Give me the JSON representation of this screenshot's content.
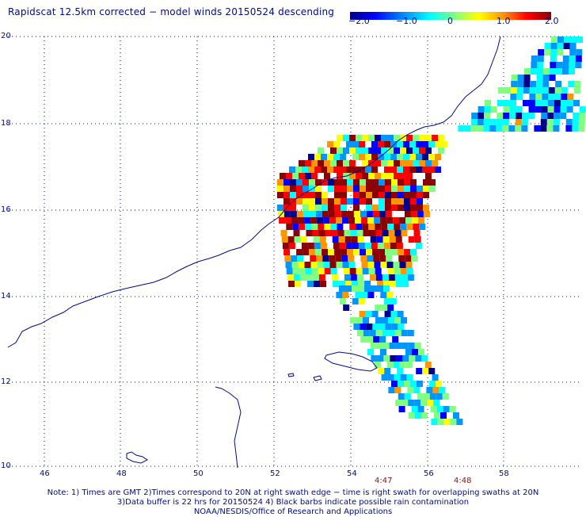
{
  "title": "Rapidscat 12.5km corrected − model winds 20150524 descending",
  "colorbar": {
    "ticks": [
      "−2.0",
      "−1.0",
      "0",
      "1.0",
      "2.0"
    ],
    "range": [
      -2.0,
      2.0
    ],
    "colors": [
      "#00008b",
      "#0000ff",
      "#0096ff",
      "#00ffff",
      "#80ff80",
      "#ffff00",
      "#ff9600",
      "#ff0000",
      "#8b0000"
    ]
  },
  "axes": {
    "lat_labels": [
      "20",
      "18",
      "16",
      "14",
      "12",
      "10"
    ],
    "lon_labels": [
      "46",
      "48",
      "50",
      "52",
      "54",
      "56",
      "58"
    ],
    "lat_range": [
      10,
      20
    ],
    "lon_range": [
      45.2,
      60
    ]
  },
  "swath_times": [
    "4:47",
    "4:48"
  ],
  "notes": [
    "Note: 1) Times are GMT 2)Times correspond to 20N at right swath edge − time is right swath for overlapping swaths at 20N",
    "3)Data buffer is 22 hrs for 20150524 4) Black barbs indicate possible rain contamination",
    "NOAA/NESDIS/Office of Research and Applications"
  ],
  "colors": {
    "coast": "#000c8a",
    "grid": "#000c8a",
    "time_label": "#7a1a1a"
  }
}
